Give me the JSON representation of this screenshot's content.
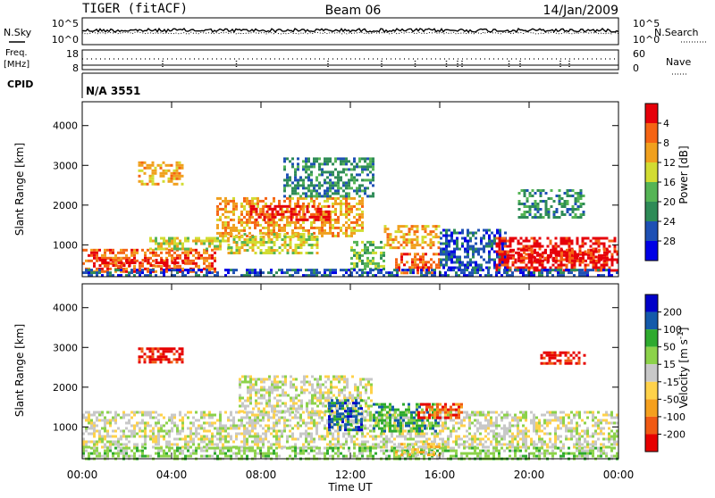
{
  "header": {
    "station": "TIGER (fitACF)",
    "beam": "Beam 06",
    "date": "14/Jan/2009"
  },
  "left_labels": {
    "nsky": "N.Sky",
    "freq_line1": "Freq.",
    "freq_line2": "[MHz]",
    "cpid": "CPID"
  },
  "right_labels": {
    "nsearch": "N.Search",
    "nave": "Nave"
  },
  "cpid_value": "N/A 3551",
  "strip_ticks": {
    "noise_left": [
      "10^5",
      "10^0"
    ],
    "noise_right": [
      "10^5",
      "10^0"
    ],
    "freq_left": [
      "18",
      "8"
    ],
    "nave_right": [
      "60",
      "0"
    ]
  },
  "colors": {
    "power_scale": [
      "#0000e6",
      "#1e50b4",
      "#2e8b57",
      "#55b455",
      "#d2dc32",
      "#f0a01e",
      "#f56414",
      "#e6000a"
    ],
    "velocity_scale": [
      "#e60000",
      "#f05a14",
      "#f5a01e",
      "#ffd24a",
      "#c8c8c8",
      "#8cd24a",
      "#2eaa2e",
      "#145aaa",
      "#0000c8"
    ],
    "ground_scatter": "#c8c8c8"
  },
  "chart_data": [
    {
      "type": "heatmap",
      "title": "",
      "xlabel": "Time UT",
      "ylabel": "Slant Range [km]",
      "xlim": [
        "00:00",
        "24:00"
      ],
      "ylim": [
        200,
        4600
      ],
      "x_ticks": [
        "00:00",
        "04:00",
        "08:00",
        "12:00",
        "16:00",
        "20:00",
        "00:00"
      ],
      "y_ticks": [
        "1000",
        "2000",
        "3000",
        "4000"
      ],
      "colorbar": {
        "label": "Power [dB]",
        "range": [
          0,
          32
        ],
        "ticks": [
          "4",
          "8",
          "12",
          "16",
          "20",
          "24",
          "28"
        ]
      },
      "blobs": [
        {
          "t0": 0.0,
          "t1": 6.0,
          "r0": 300,
          "r1": 900,
          "level": 6
        },
        {
          "t0": 0.5,
          "t1": 4.5,
          "r0": 450,
          "r1": 650,
          "level": 7
        },
        {
          "t0": 3.0,
          "t1": 6.5,
          "r0": 900,
          "r1": 1200,
          "level": 4
        },
        {
          "t0": 2.5,
          "t1": 4.5,
          "r0": 2500,
          "r1": 3100,
          "level": 5
        },
        {
          "t0": 6.0,
          "t1": 12.5,
          "r0": 1200,
          "r1": 2200,
          "level": 5
        },
        {
          "t0": 7.5,
          "t1": 11.0,
          "r0": 1600,
          "r1": 2000,
          "level": 7
        },
        {
          "t0": 6.5,
          "t1": 10.5,
          "r0": 800,
          "r1": 1300,
          "level": 4
        },
        {
          "t0": 9.0,
          "t1": 13.0,
          "r0": 2200,
          "r1": 3200,
          "level": 2
        },
        {
          "t0": 12.0,
          "t1": 13.5,
          "r0": 400,
          "r1": 1100,
          "level": 3
        },
        {
          "t0": 13.5,
          "t1": 16.0,
          "r0": 900,
          "r1": 1500,
          "level": 5
        },
        {
          "t0": 14.0,
          "t1": 16.0,
          "r0": 300,
          "r1": 800,
          "level": 6
        },
        {
          "t0": 16.0,
          "t1": 19.0,
          "r0": 400,
          "r1": 1400,
          "level": 1
        },
        {
          "t0": 18.5,
          "t1": 24.0,
          "r0": 350,
          "r1": 1200,
          "level": 7
        },
        {
          "t0": 19.0,
          "t1": 23.5,
          "r0": 600,
          "r1": 900,
          "level": 7
        },
        {
          "t0": 19.5,
          "t1": 22.5,
          "r0": 1700,
          "r1": 2400,
          "level": 2
        },
        {
          "t0": 0.0,
          "t1": 24.0,
          "r0": 200,
          "r1": 400,
          "level": 1
        }
      ]
    },
    {
      "type": "heatmap",
      "title": "",
      "xlabel": "Time UT",
      "ylabel": "Slant Range [km]",
      "xlim": [
        "00:00",
        "24:00"
      ],
      "ylim": [
        200,
        4600
      ],
      "x_ticks": [
        "00:00",
        "04:00",
        "08:00",
        "12:00",
        "16:00",
        "20:00",
        "00:00"
      ],
      "y_ticks": [
        "1000",
        "2000",
        "3000",
        "4000"
      ],
      "colorbar": {
        "label": "Velocity [m s^-1]",
        "ticks": [
          "200",
          "100",
          "50",
          "15",
          "-15",
          "-50",
          "-100",
          "-200"
        ]
      },
      "blobs": [
        {
          "t0": 0.0,
          "t1": 24.0,
          "r0": 500,
          "r1": 1400,
          "level": 4
        },
        {
          "t0": 7.0,
          "t1": 13.0,
          "r0": 1400,
          "r1": 2300,
          "level": 4
        },
        {
          "t0": 2.5,
          "t1": 4.5,
          "r0": 2600,
          "r1": 3000,
          "level": 0
        },
        {
          "t0": 0.0,
          "t1": 24.0,
          "r0": 200,
          "r1": 500,
          "level": 5
        },
        {
          "t0": 11.0,
          "t1": 12.5,
          "r0": 900,
          "r1": 1700,
          "level": 7
        },
        {
          "t0": 13.0,
          "t1": 16.0,
          "r0": 900,
          "r1": 1600,
          "level": 6
        },
        {
          "t0": 15.0,
          "t1": 17.0,
          "r0": 1200,
          "r1": 1600,
          "level": 1
        },
        {
          "t0": 14.0,
          "t1": 16.0,
          "r0": 300,
          "r1": 600,
          "level": 3
        },
        {
          "t0": 20.5,
          "t1": 22.5,
          "r0": 2600,
          "r1": 2900,
          "level": 0
        }
      ]
    }
  ]
}
